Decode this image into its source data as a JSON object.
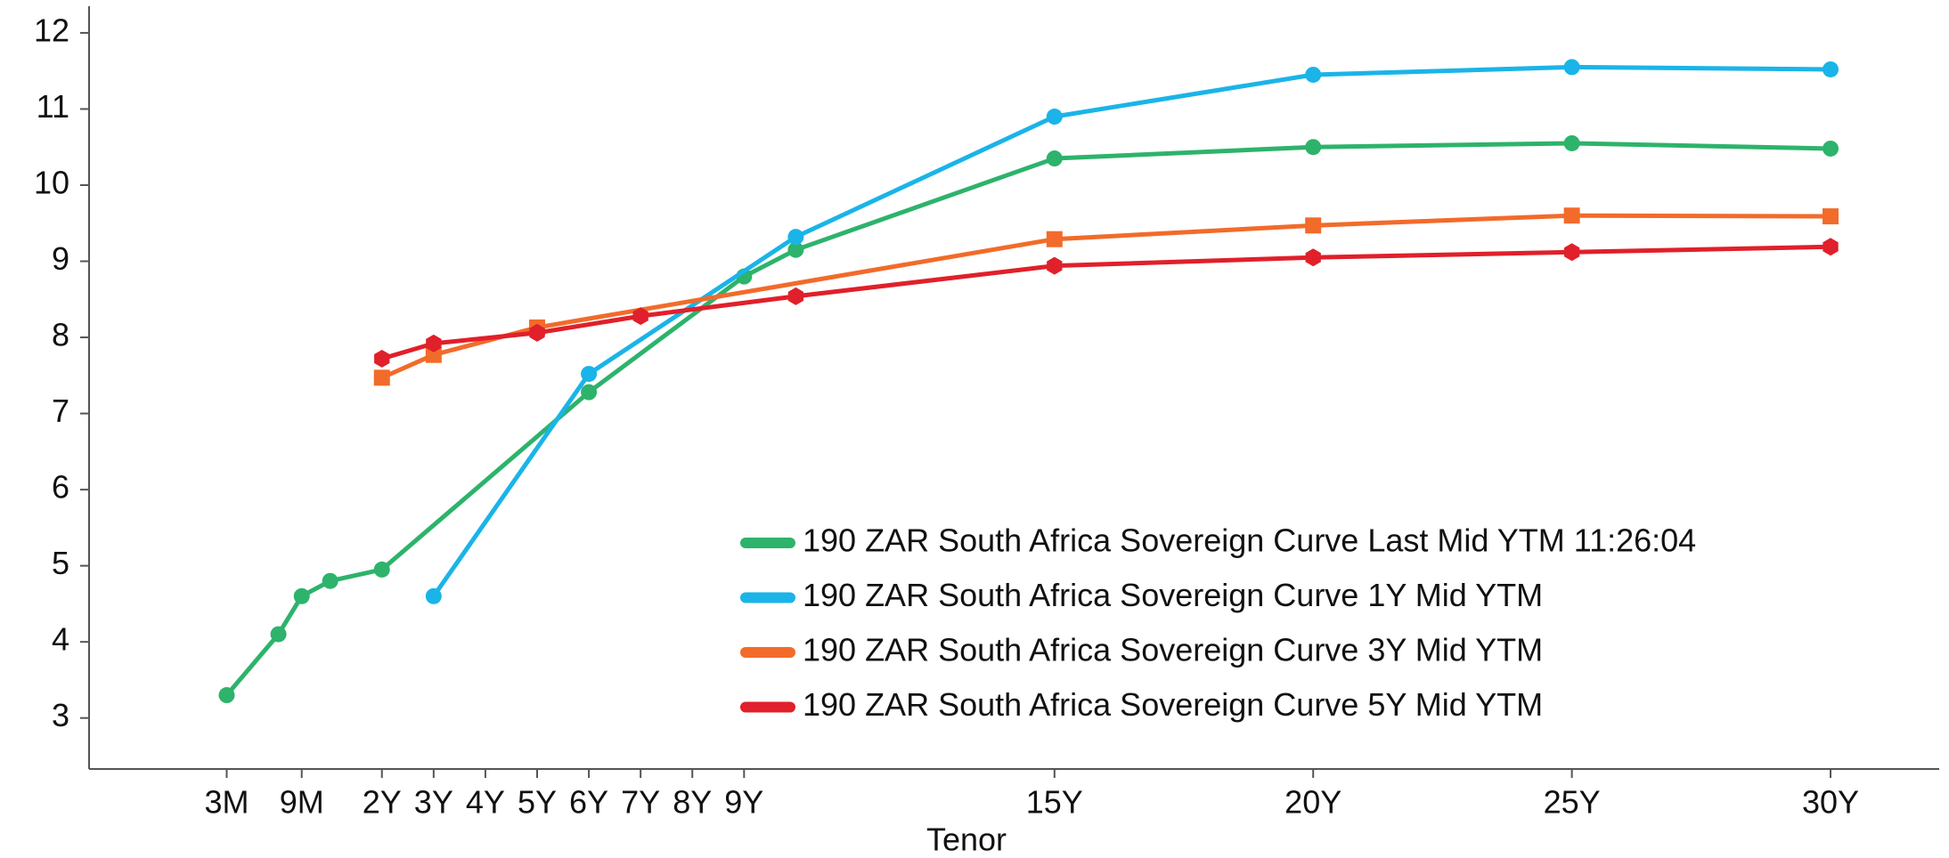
{
  "chart_data": {
    "type": "line",
    "x_label": "Tenor",
    "xlim": [
      -3.66,
      32.1
    ],
    "ylim": [
      2.33,
      12.35
    ],
    "xticks": [
      {
        "value": -1,
        "label": "3M"
      },
      {
        "value": 0.45,
        "label": "9M"
      },
      {
        "value": 2,
        "label": "2Y"
      },
      {
        "value": 3,
        "label": "3Y"
      },
      {
        "value": 4,
        "label": "4Y"
      },
      {
        "value": 5,
        "label": "5Y"
      },
      {
        "value": 6,
        "label": "6Y"
      },
      {
        "value": 7,
        "label": "7Y"
      },
      {
        "value": 8,
        "label": "8Y"
      },
      {
        "value": 9,
        "label": "9Y"
      },
      {
        "value": 15,
        "label": "15Y"
      },
      {
        "value": 20,
        "label": "20Y"
      },
      {
        "value": 25,
        "label": "25Y"
      },
      {
        "value": 30,
        "label": "30Y"
      }
    ],
    "yticks": [
      3,
      4,
      5,
      6,
      7,
      8,
      9,
      10,
      11,
      12
    ],
    "grid": false,
    "legend": "lower right",
    "series": [
      {
        "name": "190 ZAR South Africa Sovereign Curve Last Mid YTM 11:26:04",
        "color": "#2db36b",
        "marker": "circle",
        "x": [
          -1,
          0,
          0.45,
          1,
          2,
          6,
          9,
          10,
          15,
          20,
          25,
          30
        ],
        "values": [
          3.3,
          4.1,
          4.6,
          4.8,
          4.95,
          7.28,
          8.8,
          9.15,
          10.35,
          10.5,
          10.55,
          10.48
        ]
      },
      {
        "name": "190 ZAR South Africa Sovereign Curve 1Y Mid YTM",
        "color": "#1ab4e8",
        "marker": "circle",
        "x": [
          3,
          6,
          10,
          15,
          20,
          25,
          30
        ],
        "values": [
          4.6,
          7.52,
          9.32,
          10.9,
          11.45,
          11.55,
          11.52
        ]
      },
      {
        "name": "190 ZAR South Africa Sovereign Curve 3Y Mid YTM",
        "color": "#f26b2a",
        "marker": "square",
        "x": [
          2,
          3,
          5,
          15,
          20,
          25,
          30
        ],
        "values": [
          7.47,
          7.77,
          8.13,
          9.29,
          9.47,
          9.6,
          9.59
        ]
      },
      {
        "name": "190 ZAR South Africa Sovereign Curve 5Y Mid YTM",
        "color": "#e0202a",
        "marker": "hexagon",
        "x": [
          2,
          3,
          5,
          7,
          10,
          15,
          20,
          25,
          30
        ],
        "values": [
          7.72,
          7.92,
          8.06,
          8.28,
          8.54,
          8.94,
          9.05,
          9.12,
          9.19
        ]
      }
    ]
  }
}
